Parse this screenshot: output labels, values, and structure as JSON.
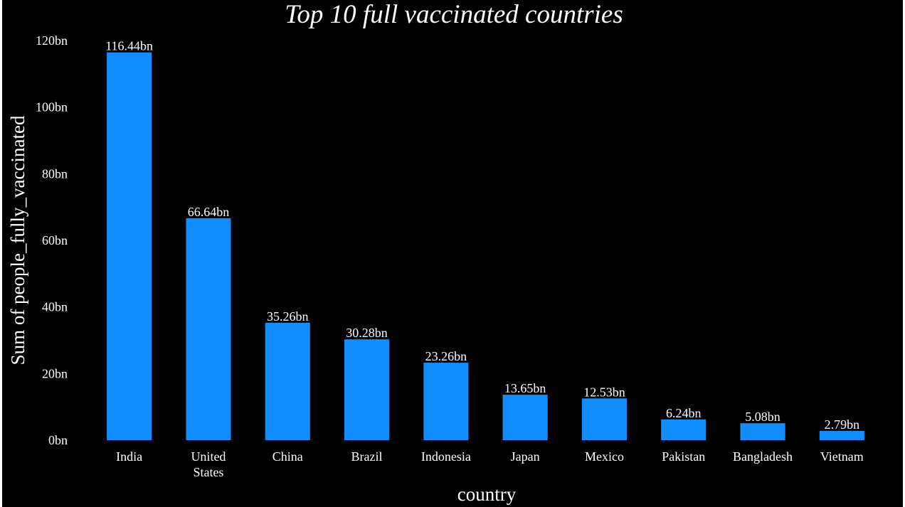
{
  "chart_data": {
    "type": "bar",
    "title": "Top 10 full vaccinated countries",
    "xlabel": "country",
    "ylabel": "Sum of people_fully_vaccinated",
    "categories": [
      [
        "India"
      ],
      [
        "United",
        "States"
      ],
      [
        "China"
      ],
      [
        "Brazil"
      ],
      [
        "Indonesia"
      ],
      [
        "Japan"
      ],
      [
        "Mexico"
      ],
      [
        "Pakistan"
      ],
      [
        "Bangladesh"
      ],
      [
        "Vietnam"
      ]
    ],
    "values": [
      116.44,
      66.64,
      35.26,
      30.28,
      23.26,
      13.65,
      12.53,
      6.24,
      5.08,
      2.79
    ],
    "data_labels": [
      "116.44bn",
      "66.64bn",
      "35.26bn",
      "30.28bn",
      "23.26bn",
      "13.65bn",
      "12.53bn",
      "6.24bn",
      "5.08bn",
      "2.79bn"
    ],
    "yticks": [
      0,
      20,
      40,
      60,
      80,
      100,
      120
    ],
    "ytick_labels": [
      "0bn",
      "20bn",
      "40bn",
      "60bn",
      "80bn",
      "100bn",
      "120bn"
    ],
    "ylim": [
      0,
      120
    ],
    "grid": false,
    "legend": "none",
    "bar_color": "#118DFF",
    "background_color": "#000000",
    "text_color": "#FFFFFF"
  }
}
